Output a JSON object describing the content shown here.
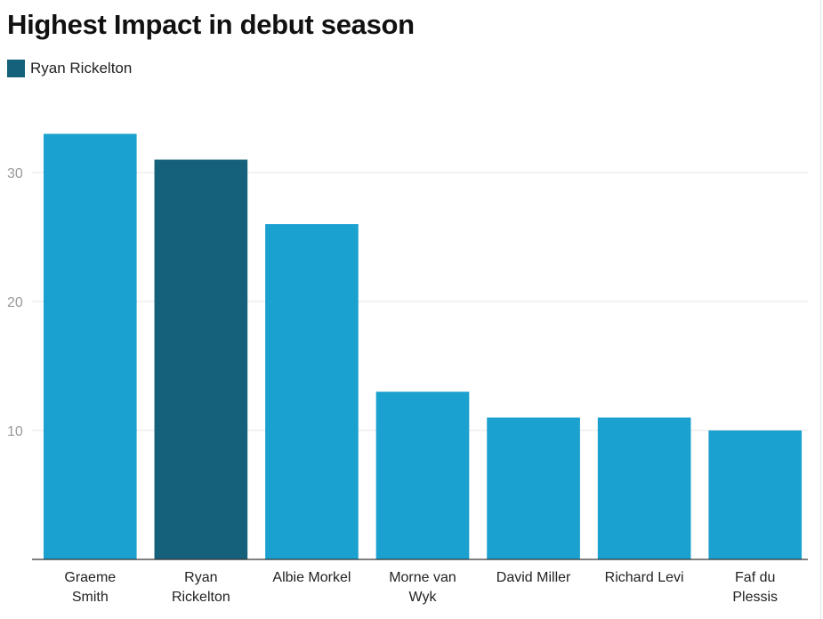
{
  "chart_data": {
    "type": "bar",
    "title": "Highest Impact in debut season",
    "legend": [
      {
        "label": "Ryan Rickelton",
        "color": "#15607a"
      }
    ],
    "categories": [
      [
        "Graeme",
        "Smith"
      ],
      [
        "Ryan",
        "Rickelton"
      ],
      [
        "Albie Morkel"
      ],
      [
        "Morne van",
        "Wyk"
      ],
      [
        "David Miller"
      ],
      [
        "Richard Levi"
      ],
      [
        "Faf du",
        "Plessis"
      ]
    ],
    "values": [
      33,
      31,
      26,
      13,
      11,
      11,
      10
    ],
    "highlight_index": 1,
    "colors": {
      "default": "#1aa1cf",
      "highlight": "#15607a"
    },
    "ylim": [
      0,
      35
    ],
    "yticks": [
      10,
      20,
      30
    ],
    "grid": true
  }
}
